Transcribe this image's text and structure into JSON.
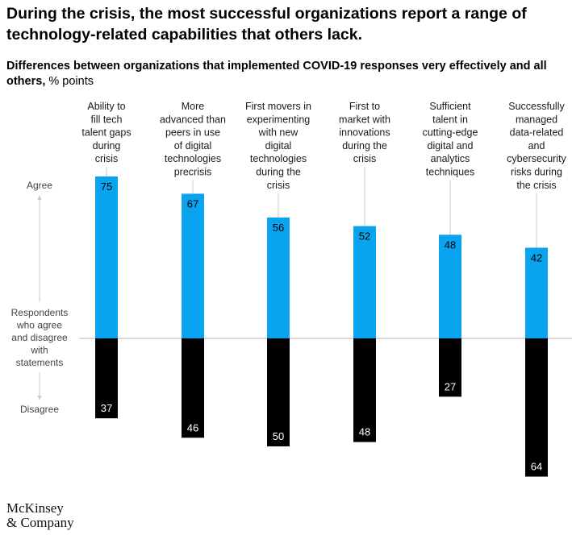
{
  "title": "During the crisis, the most successful organizations report a range of technology-related capabilities that others lack.",
  "subtitle": "Differences between organizations that implemented COVID-19 responses very effectively and all others,",
  "unit": "% points",
  "axis": {
    "top": "Agree",
    "middle": [
      "Respondents",
      "who agree",
      "and disagree",
      "with",
      "statements"
    ],
    "bottom": "Disagree"
  },
  "chart_data": {
    "type": "bar",
    "orientation": "diverging",
    "categories": [
      [
        "Ability to",
        "fill tech",
        "talent gaps",
        "during",
        "crisis"
      ],
      [
        "More",
        "advanced than",
        "peers in use",
        "of digital",
        "technologies",
        "precrisis"
      ],
      [
        "First movers in",
        "experimenting",
        "with new",
        "digital",
        "technologies",
        "during the",
        "crisis"
      ],
      [
        "First to",
        "market with",
        "innovations",
        "during the",
        "crisis"
      ],
      [
        "Sufficient",
        "talent in",
        "cutting-edge",
        "digital and",
        "analytics",
        "techniques"
      ],
      [
        "Successfully",
        "managed",
        "data-related",
        "and",
        "cybersecurity",
        "risks during",
        "the crisis"
      ]
    ],
    "series": [
      {
        "name": "Agree",
        "values": [
          75,
          67,
          56,
          52,
          48,
          42
        ],
        "color": "#0aa3f0"
      },
      {
        "name": "Disagree",
        "values": [
          37,
          46,
          50,
          48,
          27,
          64
        ],
        "color": "#000000"
      }
    ]
  },
  "logo": {
    "line1": "McKinsey",
    "line2": "& Company"
  }
}
